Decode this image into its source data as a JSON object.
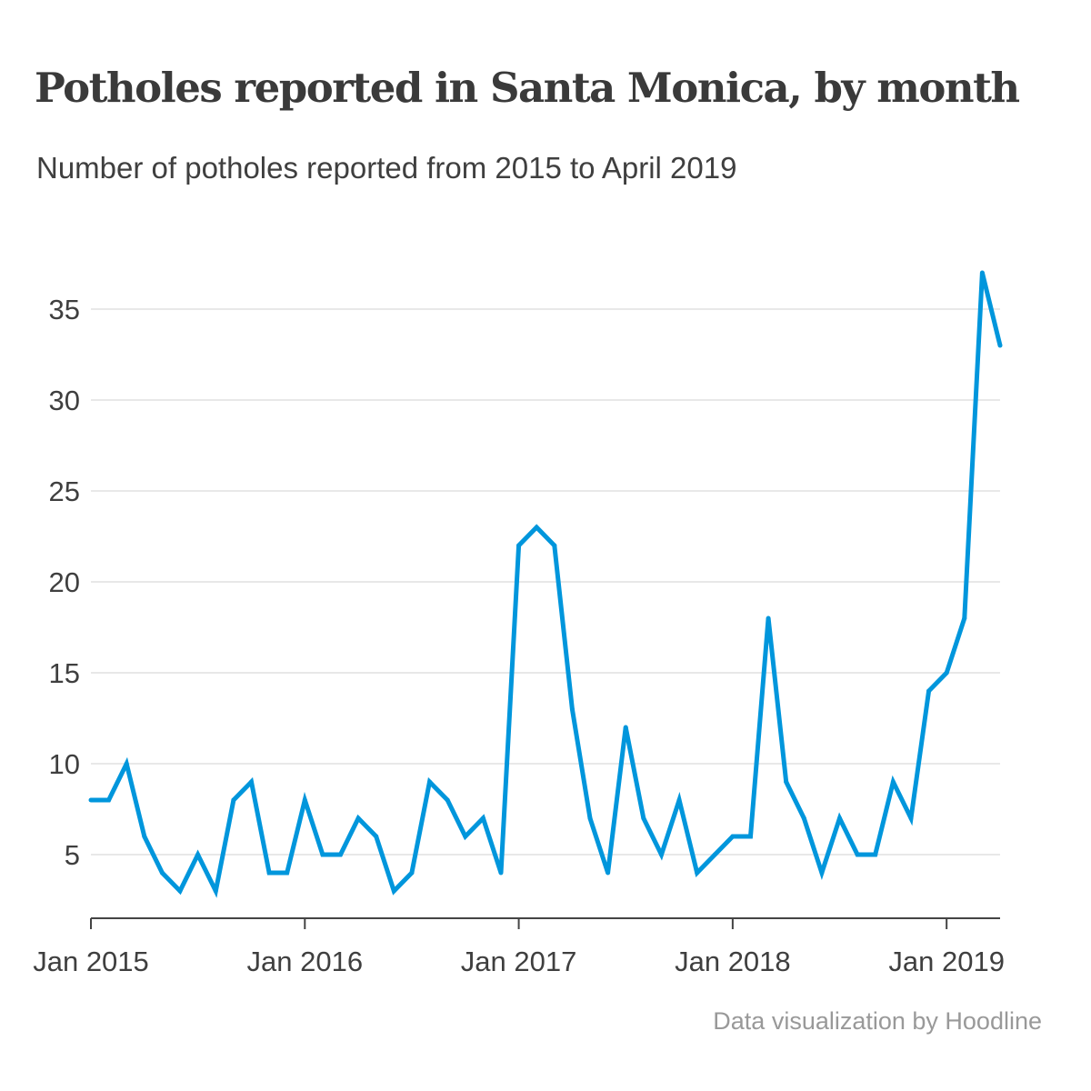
{
  "chart_data": {
    "type": "line",
    "title": "Potholes reported in Santa Monica, by month",
    "subtitle": "Number of potholes reported from 2015 to April 2019",
    "credit": "Data visualization by Hoodline",
    "xlabel": "",
    "ylabel": "",
    "x_range": [
      "2015-01",
      "2019-04"
    ],
    "ylim": [
      1.5,
      37.5
    ],
    "y_ticks": [
      5,
      10,
      15,
      20,
      25,
      30,
      35
    ],
    "y_tick_labels": [
      "5",
      "10",
      "15",
      "20",
      "25",
      "30",
      "35"
    ],
    "x_ticks": [
      "2015-01",
      "2016-01",
      "2017-01",
      "2018-01",
      "2019-01"
    ],
    "x_tick_labels": [
      "Jan 2015",
      "Jan 2016",
      "Jan 2017",
      "Jan 2018",
      "Jan 2019"
    ],
    "grid": true,
    "legend": "none",
    "line_color": "#0096dc",
    "grid_color": "#e8e8e8",
    "x": [
      "2015-01",
      "2015-02",
      "2015-03",
      "2015-04",
      "2015-05",
      "2015-06",
      "2015-07",
      "2015-08",
      "2015-09",
      "2015-10",
      "2015-11",
      "2015-12",
      "2016-01",
      "2016-02",
      "2016-03",
      "2016-04",
      "2016-05",
      "2016-06",
      "2016-07",
      "2016-08",
      "2016-09",
      "2016-10",
      "2016-11",
      "2016-12",
      "2017-01",
      "2017-02",
      "2017-03",
      "2017-04",
      "2017-05",
      "2017-06",
      "2017-07",
      "2017-08",
      "2017-09",
      "2017-10",
      "2017-11",
      "2017-12",
      "2018-01",
      "2018-02",
      "2018-03",
      "2018-04",
      "2018-05",
      "2018-06",
      "2018-07",
      "2018-08",
      "2018-09",
      "2018-10",
      "2018-11",
      "2018-12",
      "2019-01",
      "2019-02",
      "2019-03",
      "2019-04"
    ],
    "values": [
      8,
      8,
      10,
      6,
      4,
      3,
      5,
      3,
      8,
      9,
      4,
      4,
      8,
      5,
      5,
      7,
      6,
      3,
      4,
      9,
      8,
      6,
      7,
      4,
      22,
      23,
      22,
      13,
      7,
      4,
      12,
      7,
      5,
      8,
      4,
      5,
      6,
      6,
      18,
      9,
      7,
      4,
      7,
      5,
      5,
      9,
      7,
      14,
      15,
      18,
      37,
      33
    ]
  }
}
